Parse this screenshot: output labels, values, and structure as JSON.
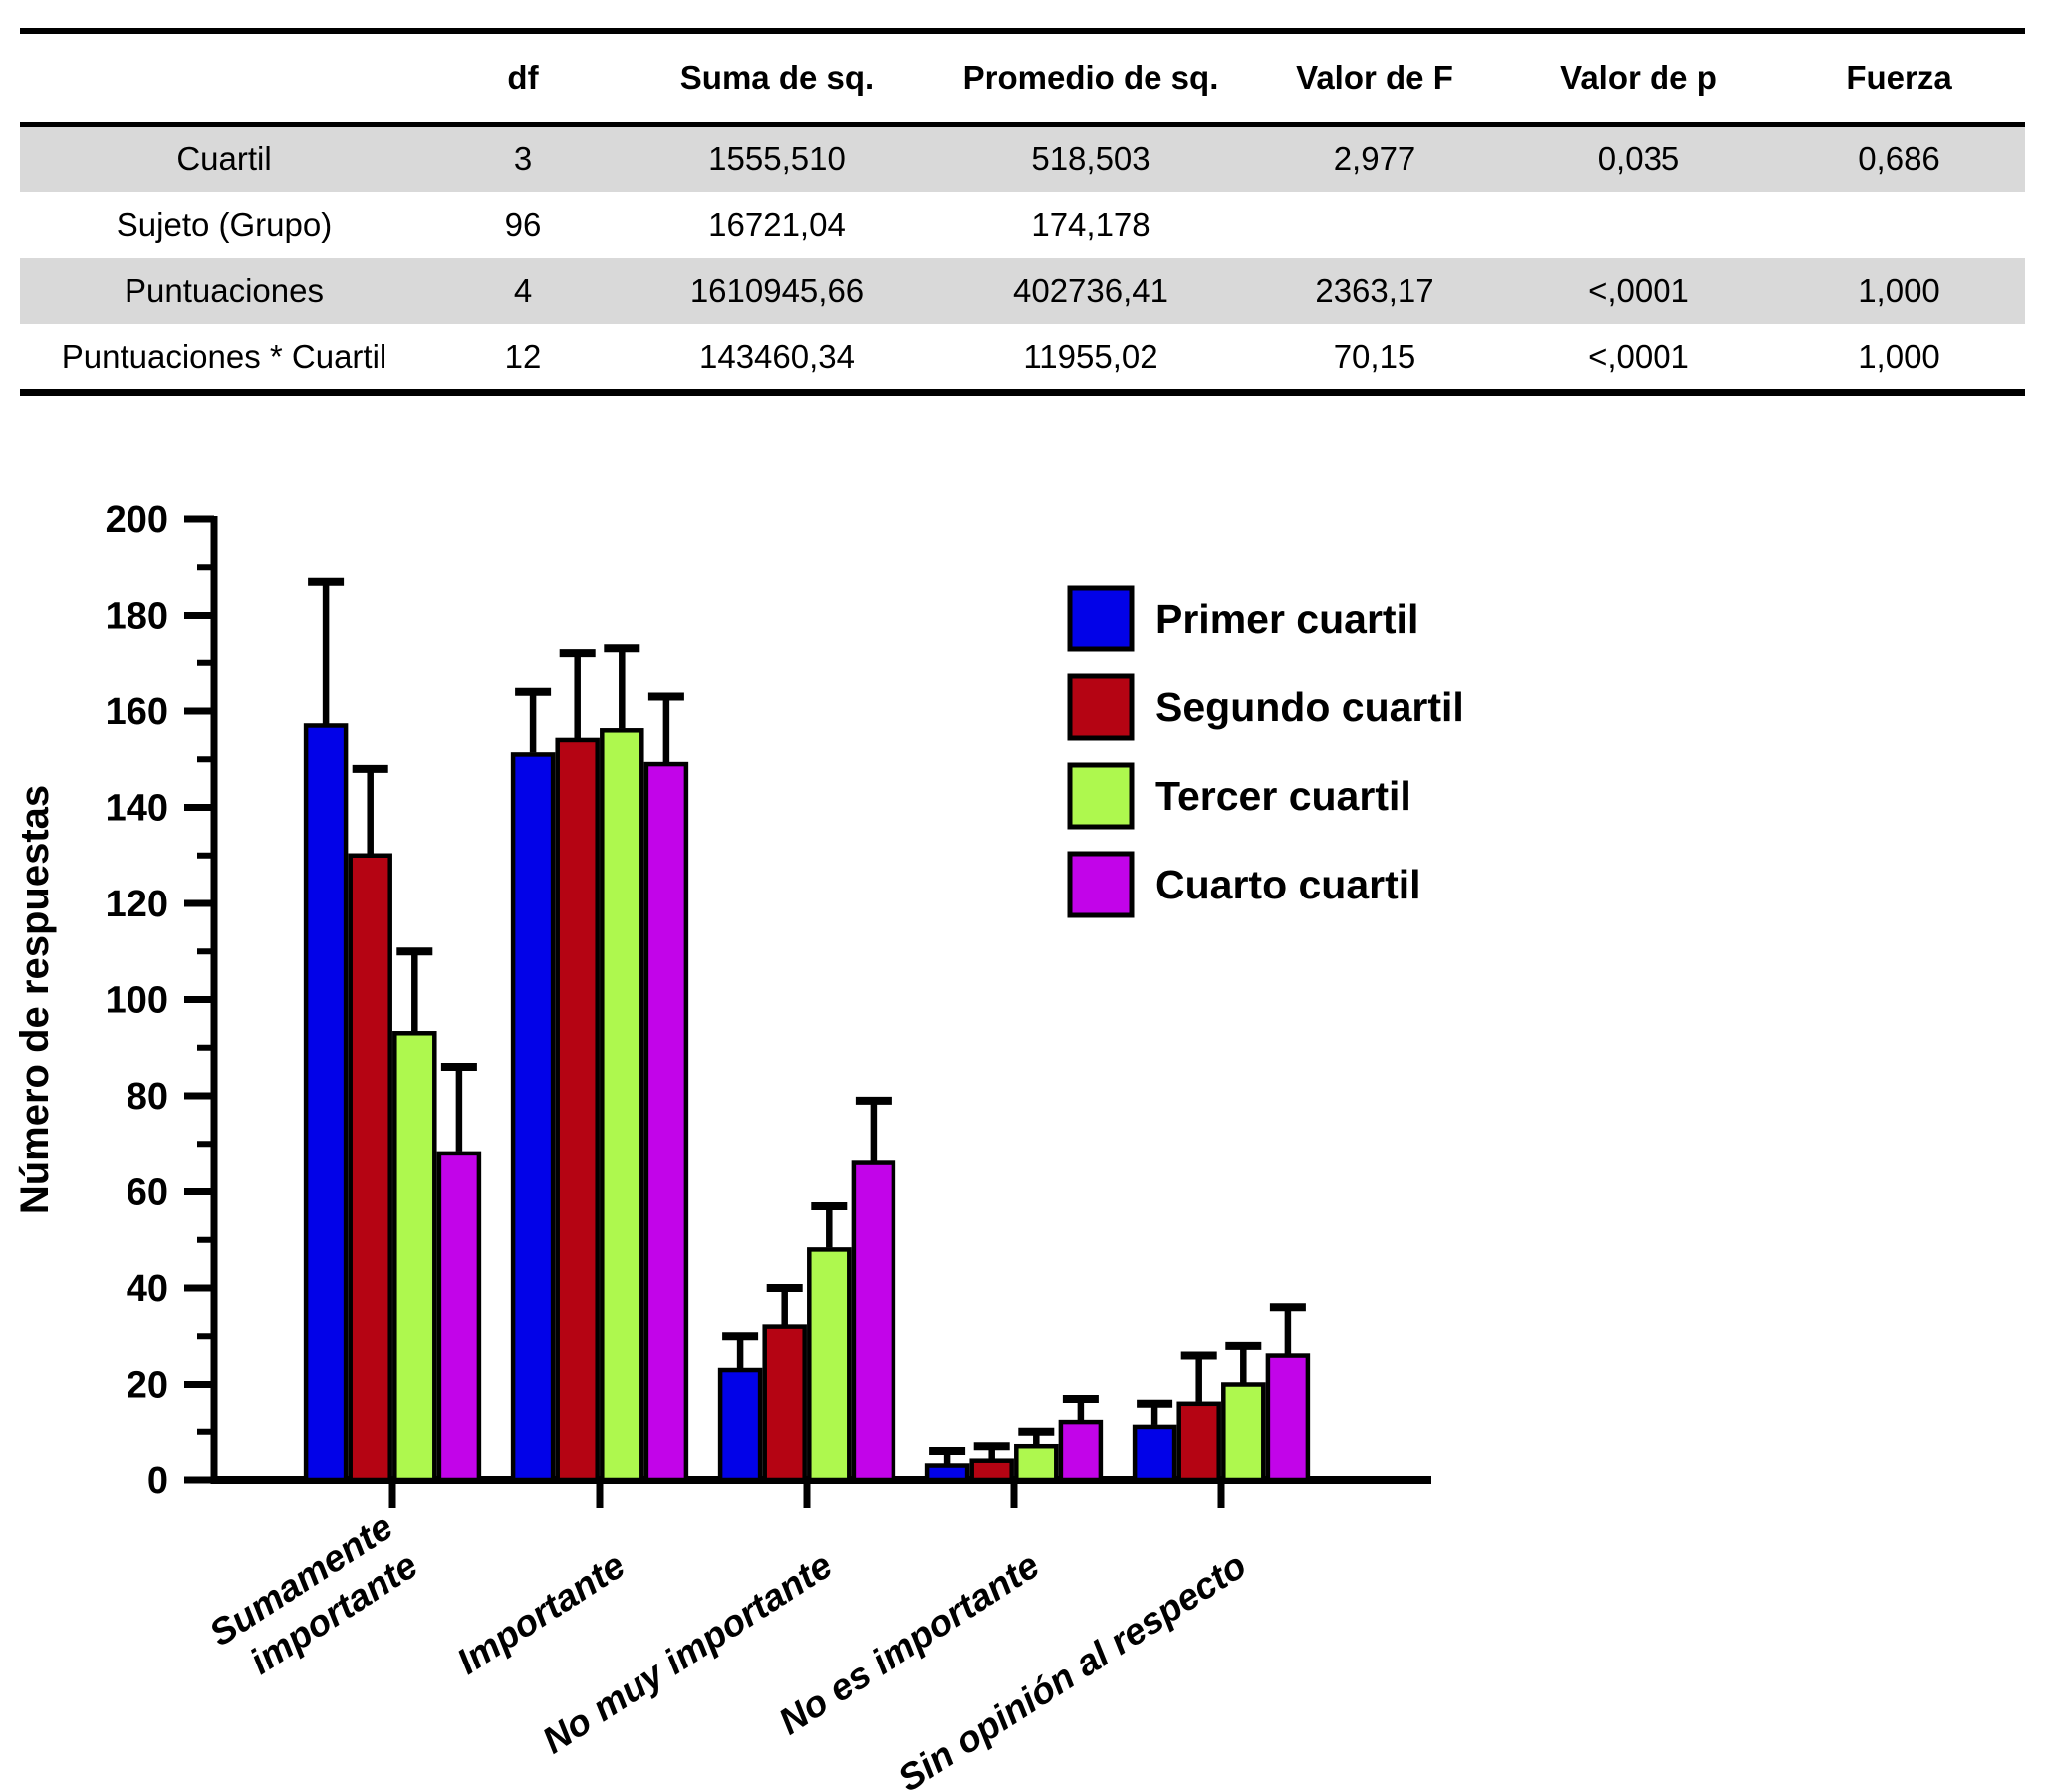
{
  "table": {
    "headers": [
      "",
      "df",
      "Suma de sq.",
      "Promedio de sq.",
      "Valor de F",
      "Valor de p",
      "Fuerza"
    ],
    "rows": [
      {
        "label": "Cuartil",
        "cells": [
          "3",
          "1555,510",
          "518,503",
          "2,977",
          "0,035",
          "0,686"
        ],
        "shaded": true
      },
      {
        "label": "Sujeto (Grupo)",
        "cells": [
          "96",
          "16721,04",
          "174,178",
          "",
          "",
          ""
        ],
        "shaded": false
      },
      {
        "label": "Puntuaciones",
        "cells": [
          "4",
          "1610945,66",
          "402736,41",
          "2363,17",
          "<,0001",
          "1,000"
        ],
        "shaded": true
      },
      {
        "label": "Puntuaciones * Cuartil",
        "cells": [
          "12",
          "143460,34",
          "11955,02",
          "70,15",
          "<,0001",
          "1,000"
        ],
        "shaded": false
      }
    ],
    "shade_color": "#d9d9d9"
  },
  "chart_data": {
    "type": "bar",
    "subtype": "grouped_bar_with_error_bars",
    "title": "",
    "xlabel": "",
    "ylabel": "Número de respuestas",
    "ylim": [
      0,
      200
    ],
    "ytick_major_step": 20,
    "ytick_minor_step": 10,
    "grid": false,
    "legend_position": "upper right inside",
    "categories": [
      "Sumamente importante",
      "Importante",
      "No muy importante",
      "No es importante",
      "Sin opinión al respecto"
    ],
    "category_label_lines": [
      [
        "Sumamente",
        "importante"
      ],
      [
        "Importante"
      ],
      [
        "No muy importante"
      ],
      [
        "No es importante"
      ],
      [
        "Sin opinión al respecto"
      ]
    ],
    "series": [
      {
        "name": "Primer cuartil",
        "color": "#0202e8",
        "values": [
          157,
          151,
          23,
          3,
          11
        ],
        "errors": [
          30,
          13,
          7,
          3,
          5
        ]
      },
      {
        "name": "Segundo cuartil",
        "color": "#b50413",
        "values": [
          130,
          154,
          32,
          4,
          16
        ],
        "errors": [
          18,
          18,
          8,
          3,
          10
        ]
      },
      {
        "name": "Tercer cuartil",
        "color": "#aef84e",
        "values": [
          93,
          156,
          48,
          7,
          20
        ],
        "errors": [
          17,
          17,
          9,
          3,
          8
        ]
      },
      {
        "name": "Cuarto cuartil",
        "color": "#c204e9",
        "values": [
          68,
          149,
          66,
          12,
          26
        ],
        "errors": [
          18,
          14,
          13,
          5,
          10
        ]
      }
    ],
    "bar_edge_color": "#000000",
    "axis_color": "#000000"
  }
}
